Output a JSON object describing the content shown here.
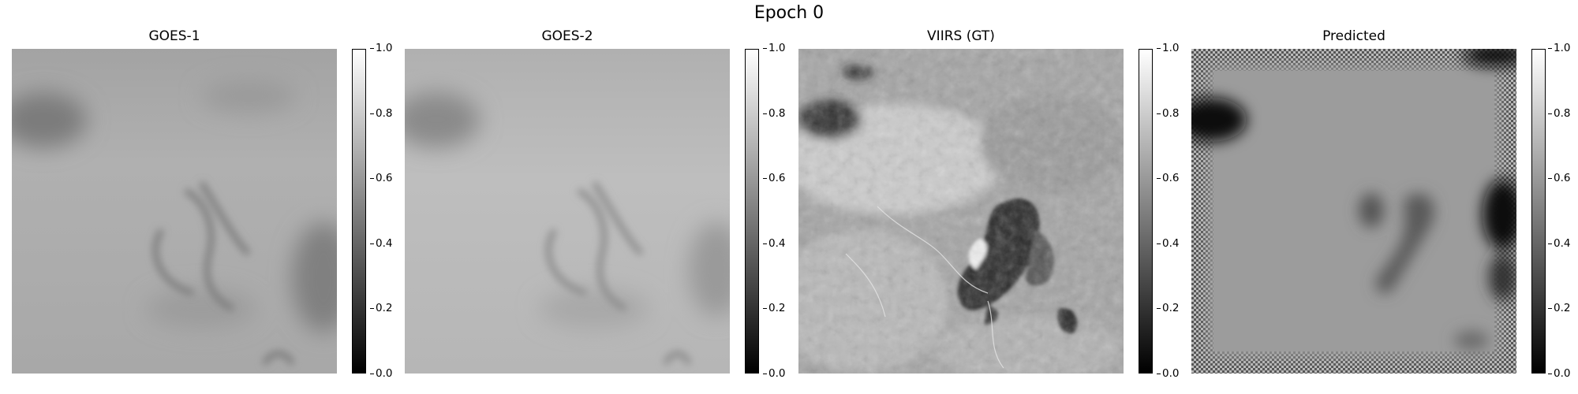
{
  "figure": {
    "title": "Epoch 0"
  },
  "panels": [
    {
      "title": "GOES-1",
      "image": "blurred grayscale satellite view with faint darker cloud swirls"
    },
    {
      "title": "GOES-2",
      "image": "blurred grayscale satellite view, slightly lighter, faint cloud swirls"
    },
    {
      "title": "VIIRS (GT)",
      "image": "high-resolution grayscale satellite view with dark cloud band and river texture"
    },
    {
      "title": "Predicted",
      "image": "smooth gray field with dark blobs and checkered border artifacts"
    }
  ],
  "colorbar": {
    "min": 0.0,
    "max": 1.0,
    "ticks": [
      "1.0",
      "0.8",
      "0.6",
      "0.4",
      "0.2",
      "0.0"
    ],
    "colormap": "gray"
  }
}
